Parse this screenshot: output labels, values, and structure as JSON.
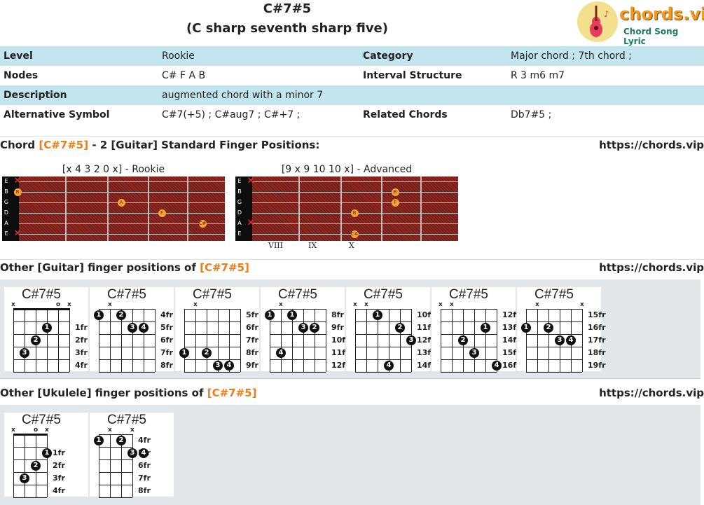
{
  "header": {
    "title": "C#7#5",
    "subtitle": "(C sharp seventh sharp five)",
    "logo_text": "chords.vip",
    "logo_sub": "Chord Song Lyric",
    "logo_icon": "guitar-icon"
  },
  "info": [
    [
      "Level",
      "Rookie",
      "Category",
      "Major chord ; 7th chord ;"
    ],
    [
      "Nodes",
      "C# F A B",
      "Interval Structure",
      "R 3 m6 m7"
    ],
    [
      "Description",
      "augmented chord with a minor 7",
      "",
      ""
    ],
    [
      "Alternative Symbol",
      " C#7(+5) ; C#aug7 ; C#+7 ;",
      "Related Chords",
      " Db7#5 ;"
    ]
  ],
  "section1": {
    "pre": "Chord ",
    "chord": "[C#7#5]",
    "post": " - 2 [Guitar] Standard Finger Positions:",
    "site": "https://chords.vip"
  },
  "fretboards": [
    {
      "caption": "[x 4 3 2 0 x] - Rookie",
      "strings": [
        "E",
        "B",
        "G",
        "D",
        "A",
        "E"
      ],
      "fret_numbers": [],
      "marks": [
        {
          "s": 0,
          "f": 0,
          "t": "x"
        },
        {
          "s": 1,
          "f": 0,
          "t": "B"
        },
        {
          "s": 2,
          "f": 2,
          "t": "A"
        },
        {
          "s": 3,
          "f": 3,
          "t": "F"
        },
        {
          "s": 4,
          "f": 4,
          "t": "C#"
        },
        {
          "s": 5,
          "f": 0,
          "t": "x"
        }
      ]
    },
    {
      "caption": "[9 x 9 10 10 x] - Advanced",
      "strings": [
        "E",
        "B",
        "G",
        "D",
        "A",
        "E"
      ],
      "fret_numbers": [
        "VIII",
        "IX",
        "X"
      ],
      "marks": [
        {
          "s": 0,
          "f": 0,
          "t": "x"
        },
        {
          "s": 1,
          "f": 3,
          "t": "B"
        },
        {
          "s": 2,
          "f": 3,
          "t": "F"
        },
        {
          "s": 3,
          "f": 2,
          "t": "B"
        },
        {
          "s": 4,
          "f": 0,
          "t": "x"
        },
        {
          "s": 5,
          "f": 2,
          "t": "C#"
        }
      ]
    }
  ],
  "section2": {
    "pre": "Other [Guitar] finger positions of ",
    "chord": "[C#7#5]",
    "site": "https://chords.vip"
  },
  "guitar_cards": [
    {
      "name": "C#7#5",
      "marks": [
        "x",
        "",
        "",
        "",
        "o",
        "x"
      ],
      "frets": [
        "1fr",
        "2fr",
        "3fr",
        "4fr"
      ],
      "nut": true,
      "dots": [
        {
          "s": 3,
          "r": 2,
          "n": "1"
        },
        {
          "s": 2,
          "r": 3,
          "n": "2"
        },
        {
          "s": 1,
          "r": 4,
          "n": "3"
        }
      ]
    },
    {
      "name": "C#7#5",
      "marks": [
        "",
        "x",
        "",
        "",
        "",
        ""
      ],
      "frets": [
        "4fr",
        "5fr",
        "6fr",
        "7fr",
        "8fr"
      ],
      "nut": false,
      "dots": [
        {
          "s": 0,
          "r": 1,
          "n": "1"
        },
        {
          "s": 2,
          "r": 1,
          "n": "2"
        },
        {
          "s": 3,
          "r": 2,
          "n": "3"
        },
        {
          "s": 4,
          "r": 2,
          "n": "4"
        }
      ]
    },
    {
      "name": "C#7#5",
      "marks": [
        "",
        "x",
        "",
        "",
        "",
        ""
      ],
      "frets": [
        "5fr",
        "6fr",
        "7fr",
        "8fr",
        "9fr"
      ],
      "nut": false,
      "dots": [
        {
          "s": 0,
          "r": 4,
          "n": "1"
        },
        {
          "s": 2,
          "r": 4,
          "n": "2"
        },
        {
          "s": 3,
          "r": 5,
          "n": "3"
        },
        {
          "s": 4,
          "r": 5,
          "n": "4"
        }
      ]
    },
    {
      "name": "C#7#5",
      "marks": [
        "",
        "x",
        "",
        "",
        "",
        ""
      ],
      "frets": [
        "8fr",
        "9fr",
        "10fr",
        "11fr",
        "12fr"
      ],
      "nut": false,
      "dots": [
        {
          "s": 0,
          "r": 1,
          "n": "1"
        },
        {
          "s": 2,
          "r": 1,
          "n": "1"
        },
        {
          "s": 3,
          "r": 2,
          "n": "3"
        },
        {
          "s": 4,
          "r": 2,
          "n": "2"
        },
        {
          "s": 1,
          "r": 4,
          "n": "4"
        }
      ]
    },
    {
      "name": "C#7#5",
      "marks": [
        "x",
        "x",
        "",
        "",
        "",
        ""
      ],
      "frets": [
        "10fr",
        "11fr",
        "12fr",
        "13fr",
        "14fr"
      ],
      "nut": false,
      "dots": [
        {
          "s": 2,
          "r": 1,
          "n": "1"
        },
        {
          "s": 4,
          "r": 2,
          "n": "2"
        },
        {
          "s": 5,
          "r": 3,
          "n": "3"
        },
        {
          "s": 3,
          "r": 5,
          "n": "4"
        }
      ]
    },
    {
      "name": "C#7#5",
      "marks": [
        "x",
        "x",
        "",
        "",
        "",
        ""
      ],
      "frets": [
        "12fr",
        "13fr",
        "14fr",
        "15fr",
        "16fr"
      ],
      "nut": false,
      "dots": [
        {
          "s": 4,
          "r": 2,
          "n": "1"
        },
        {
          "s": 2,
          "r": 3,
          "n": "2"
        },
        {
          "s": 3,
          "r": 4,
          "n": "3"
        },
        {
          "s": 5,
          "r": 5,
          "n": "4"
        }
      ]
    },
    {
      "name": "C#7#5",
      "marks": [
        "",
        "x",
        "",
        "",
        "",
        "x"
      ],
      "frets": [
        "15fr",
        "16fr",
        "17fr",
        "18fr",
        "19fr"
      ],
      "nut": false,
      "dots": [
        {
          "s": 0,
          "r": 2,
          "n": "1"
        },
        {
          "s": 2,
          "r": 2,
          "n": "2"
        },
        {
          "s": 3,
          "r": 3,
          "n": "3"
        },
        {
          "s": 4,
          "r": 3,
          "n": "4"
        }
      ]
    }
  ],
  "section3": {
    "pre": "Other [Ukulele] finger positions of ",
    "chord": "[C#7#5]",
    "site": "https://chords.vip"
  },
  "ukulele_cards": [
    {
      "name": "C#7#5",
      "marks": [
        "x",
        "",
        "o",
        "x"
      ],
      "frets": [
        "1fr",
        "2fr",
        "3fr",
        "4fr"
      ],
      "nut": true,
      "dots": [
        {
          "s": 3,
          "r": 2,
          "n": "1"
        },
        {
          "s": 2,
          "r": 3,
          "n": "2"
        },
        {
          "s": 1,
          "r": 4,
          "n": "3"
        }
      ]
    },
    {
      "name": "C#7#5",
      "marks": [
        "",
        "x",
        "",
        "x"
      ],
      "frets": [
        "4fr",
        "5fr",
        "6fr",
        "7fr",
        "8fr"
      ],
      "nut": false,
      "dots": [
        {
          "s": 0,
          "r": 1,
          "n": "1"
        },
        {
          "s": 2,
          "r": 1,
          "n": "2"
        },
        {
          "s": 3,
          "r": 2,
          "n": "3"
        },
        {
          "s": 4,
          "r": 2,
          "n": "4"
        }
      ]
    }
  ]
}
